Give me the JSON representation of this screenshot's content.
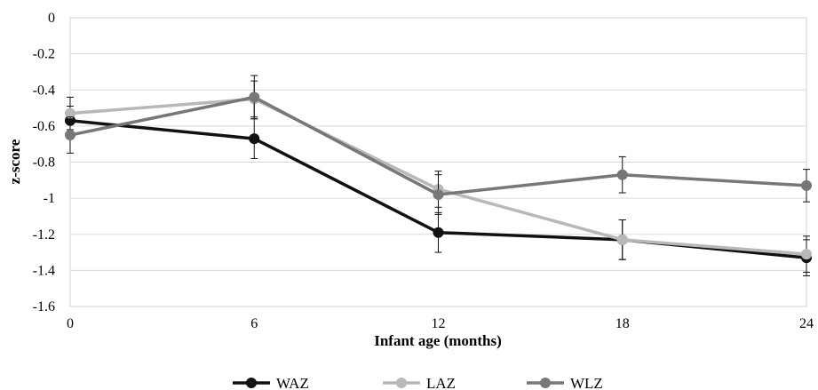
{
  "chart_data": {
    "type": "line",
    "title": "",
    "xlabel": "Infant age (months)",
    "ylabel": "z-score",
    "x": [
      0,
      6,
      12,
      18,
      24
    ],
    "x_tick_labels": [
      "0",
      "6",
      "12",
      "18",
      "24"
    ],
    "ylim": [
      -1.6,
      0
    ],
    "y_ticks": [
      0,
      -0.2,
      -0.4,
      -0.6,
      -0.8,
      -1,
      -1.2,
      -1.4,
      -1.6
    ],
    "y_tick_labels": [
      "0",
      "-0.2",
      "-0.4",
      "-0.6",
      "-0.8",
      "-1",
      "-1.2",
      "-1.4",
      "-1.6"
    ],
    "grid": "horizontal",
    "legend_position": "bottom",
    "series": [
      {
        "name": "WAZ",
        "color": "#111111",
        "values": [
          -0.57,
          -0.67,
          -1.19,
          -1.23,
          -1.33
        ],
        "error": [
          0.08,
          0.11,
          0.11,
          0.11,
          0.1
        ]
      },
      {
        "name": "LAZ",
        "color": "#b8b8b8",
        "values": [
          -0.53,
          -0.45,
          -0.95,
          -1.23,
          -1.31
        ],
        "error": [
          0.09,
          0.1,
          0.1,
          0.11,
          0.1
        ]
      },
      {
        "name": "WLZ",
        "color": "#777777",
        "values": [
          -0.65,
          -0.44,
          -0.98,
          -0.87,
          -0.93
        ],
        "error": [
          0.1,
          0.12,
          0.11,
          0.1,
          0.09
        ]
      }
    ]
  }
}
